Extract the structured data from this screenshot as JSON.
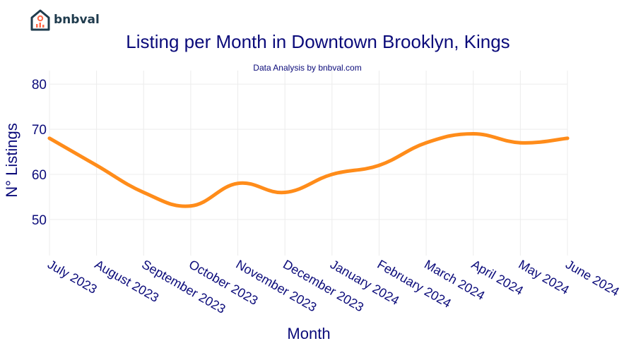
{
  "brand": {
    "name": "bnbval"
  },
  "chart_data": {
    "type": "line",
    "title": "Listing per Month in Downtown Brooklyn, Kings",
    "subtitle": "Data Analysis by bnbval.com",
    "xlabel": "Month",
    "ylabel": "N° Listings",
    "categories": [
      "July 2023",
      "August 2023",
      "September 2023",
      "October 2023",
      "November 2023",
      "December 2023",
      "January 2024",
      "February 2024",
      "March 2024",
      "April 2024",
      "May 2024",
      "June 2024"
    ],
    "series": [
      {
        "values": [
          68,
          62,
          56,
          53,
          58,
          56,
          60,
          62,
          67,
          69,
          67,
          68
        ],
        "color": "#ff8c1a"
      }
    ],
    "yticks": [
      50,
      60,
      70,
      80
    ],
    "ylim": [
      42,
      83
    ],
    "grid": true,
    "legend": "none"
  }
}
